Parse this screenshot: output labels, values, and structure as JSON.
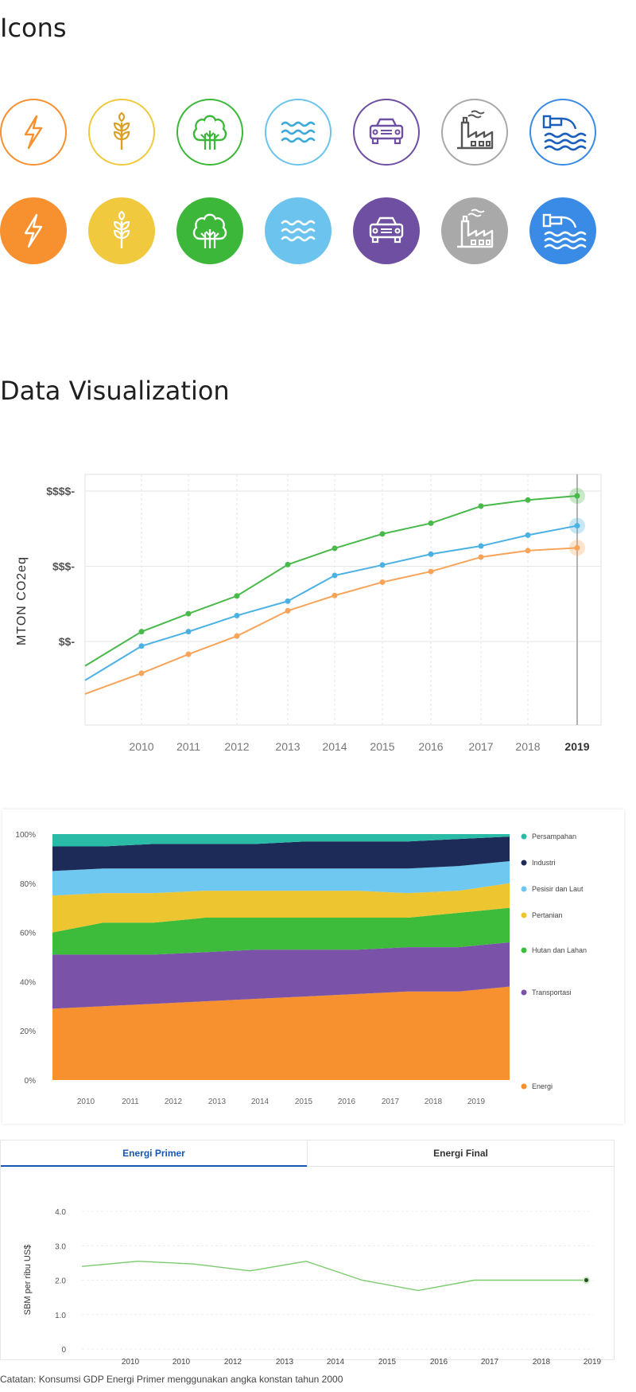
{
  "icons_section": {
    "title": "Icons",
    "items": [
      {
        "name": "energy",
        "color": "#f7902f"
      },
      {
        "name": "agriculture",
        "color": "#f0c93e"
      },
      {
        "name": "forest",
        "color": "#3db73a"
      },
      {
        "name": "coastal",
        "color": "#6cc4ee"
      },
      {
        "name": "transport",
        "color": "#6e4fa1"
      },
      {
        "name": "industry",
        "color": "#a9a9a9"
      },
      {
        "name": "waste",
        "color": "#3a8be6"
      }
    ]
  },
  "dataviz_section": {
    "title": "Data Visualization"
  },
  "chart_data": [
    {
      "type": "line",
      "ylabel": "MTON CO2eq",
      "x": [
        "2010",
        "2011",
        "2012",
        "2013",
        "2014",
        "2015",
        "2016",
        "2017",
        "2018",
        "2019"
      ],
      "y_ticks": [
        "$$-",
        "$$$-",
        "$$$$-"
      ],
      "highlight": "2019",
      "series": [
        {
          "name": "green",
          "color": "#49b94a",
          "values": [
            104.7,
            113.3,
            121.8,
            136.8,
            144.6,
            151.5,
            156.6,
            164.8,
            167.7,
            169.7
          ]
        },
        {
          "name": "blue",
          "color": "#4ab1e2",
          "values": [
            97.8,
            104.7,
            112.4,
            119.3,
            131.6,
            136.6,
            141.8,
            145.7,
            150.9,
            155.4
          ]
        },
        {
          "name": "orange",
          "color": "#f7a45a",
          "values": [
            84.8,
            93.9,
            102.6,
            114.7,
            122.0,
            128.4,
            133.5,
            140.4,
            143.5,
            144.8
          ]
        }
      ],
      "lead_values": {
        "green": 88.3,
        "blue": 81.4,
        "orange": 74.9
      }
    },
    {
      "type": "area",
      "stacked": true,
      "x": [
        "2010",
        "2011",
        "2012",
        "2013",
        "2014",
        "2015",
        "2016",
        "2017",
        "2018",
        "2019"
      ],
      "y_ticks": [
        "0%",
        "20%",
        "40%",
        "60%",
        "80%",
        "100%"
      ],
      "ylim": [
        0,
        100
      ],
      "series": [
        {
          "name": "Energi",
          "color": "#f7902f",
          "values": [
            29,
            30,
            31,
            32,
            33,
            34,
            35,
            36,
            36,
            38
          ]
        },
        {
          "name": "Transportasi",
          "color": "#7a52a8",
          "values": [
            22,
            21,
            20,
            20,
            20,
            19,
            18,
            18,
            18,
            18
          ]
        },
        {
          "name": "Hutan dan Lahan",
          "color": "#3dbb3b",
          "values": [
            9,
            13,
            13,
            14,
            13,
            13,
            13,
            12,
            14,
            14
          ]
        },
        {
          "name": "Pertanian",
          "color": "#edc530",
          "values": [
            15,
            12,
            12,
            11,
            11,
            11,
            11,
            10,
            9,
            10
          ]
        },
        {
          "name": "Pesisir dan Laut",
          "color": "#6fc8ef",
          "values": [
            10,
            10,
            10,
            9,
            9,
            9,
            9,
            10,
            10,
            9
          ]
        },
        {
          "name": "Industri",
          "color": "#1c2b57",
          "values": [
            10,
            9,
            10,
            10,
            10,
            11,
            11,
            11,
            11,
            10
          ]
        },
        {
          "name": "Persampahan",
          "color": "#29bba6",
          "values": [
            5,
            5,
            4,
            4,
            4,
            3,
            3,
            3,
            2,
            1
          ]
        }
      ],
      "legend": [
        "Persampahan",
        "Industri",
        "Pesisir dan Laut",
        "Pertanian",
        "Hutan dan Lahan",
        "Transportasi",
        "Energi"
      ]
    },
    {
      "type": "line",
      "ylabel": "SBM per ribu US$",
      "x": [
        "2010",
        "2010",
        "2012",
        "2013",
        "2014",
        "2015",
        "2016",
        "2017",
        "2018",
        "2019"
      ],
      "y_ticks": [
        "0",
        "1.0",
        "2.0",
        "3.0",
        "4.0"
      ],
      "ylim": [
        0,
        4
      ],
      "series": [
        {
          "name": "Energi Primer",
          "color": "#7bcc6e",
          "points": [
            [
              0.0,
              2.4
            ],
            [
              1.0,
              2.55
            ],
            [
              2.0,
              2.47
            ],
            [
              3.0,
              2.27
            ],
            [
              4.0,
              2.55
            ],
            [
              5.0,
              2.0
            ],
            [
              6.0,
              1.7
            ],
            [
              7.0,
              2.0
            ],
            [
              8.0,
              2.0
            ],
            [
              9.0,
              2.0
            ]
          ]
        }
      ],
      "tabs": {
        "active": "Energi Primer",
        "inactive": "Energi Final"
      }
    }
  ],
  "note": "Catatan: Konsumsi GDP Energi Primer menggunakan angka konstan tahun 2000"
}
